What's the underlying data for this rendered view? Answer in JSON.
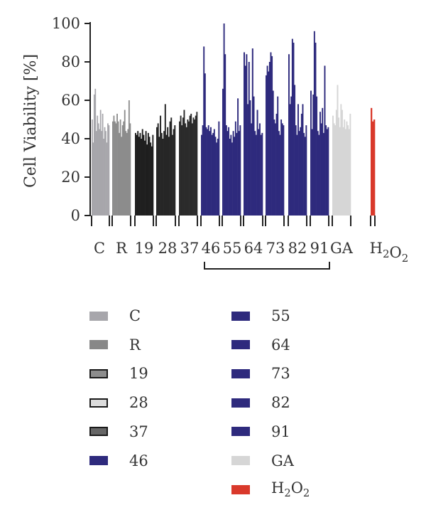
{
  "chart_data": {
    "type": "bar",
    "ylabel": "Cell Viability [%]",
    "ylim": [
      0,
      100
    ],
    "yticks": [
      0,
      20,
      40,
      60,
      80,
      100
    ],
    "grid": false,
    "legend_position": "bottom",
    "groups": [
      {
        "label": "C",
        "color": "#a7a6ab",
        "values": [
          50,
          38,
          63,
          66,
          44,
          52,
          48,
          45,
          55,
          44,
          53,
          40,
          46,
          44,
          38,
          48,
          47
        ]
      },
      {
        "label": "R",
        "color": "#8c8c8c",
        "values": [
          49,
          52,
          49,
          48,
          53,
          49,
          43,
          50,
          41,
          47,
          49,
          55,
          44,
          43,
          45,
          60,
          48
        ]
      },
      {
        "label": "19",
        "color": "#1f1f1f",
        "values": [
          43,
          42,
          44,
          41,
          43,
          40,
          45,
          42,
          39,
          44,
          37,
          43,
          41,
          38,
          36,
          42
        ]
      },
      {
        "label": "28",
        "color": "#262626",
        "values": [
          46,
          48,
          41,
          52,
          43,
          40,
          44,
          58,
          42,
          46,
          41,
          49,
          51,
          42,
          45,
          47
        ]
      },
      {
        "label": "37",
        "color": "#2b2b2b",
        "values": [
          49,
          52,
          47,
          51,
          55,
          48,
          46,
          50,
          49,
          52,
          53,
          48,
          51,
          50,
          52,
          54
        ]
      },
      {
        "label": "46",
        "color": "#2e2a7d",
        "values": [
          42,
          47,
          88,
          74,
          46,
          45,
          47,
          44,
          46,
          42,
          43,
          45,
          41,
          38,
          40,
          49
        ]
      },
      {
        "label": "55",
        "color": "#2e2a7d",
        "values": [
          66,
          100,
          84,
          47,
          44,
          46,
          40,
          42,
          38,
          44,
          41,
          49,
          43,
          61,
          44,
          47
        ]
      },
      {
        "label": "64",
        "color": "#2e2a7d",
        "values": [
          85,
          78,
          84,
          58,
          80,
          60,
          48,
          87,
          62,
          44,
          42,
          55,
          45,
          48,
          42,
          43
        ]
      },
      {
        "label": "73",
        "color": "#2e2a7d",
        "values": [
          73,
          78,
          75,
          80,
          85,
          83,
          65,
          50,
          48,
          53,
          62,
          44,
          42,
          50,
          48,
          47
        ]
      },
      {
        "label": "82",
        "color": "#2e2a7d",
        "values": [
          84,
          58,
          62,
          92,
          90,
          68,
          47,
          42,
          58,
          44,
          46,
          53,
          58,
          43,
          41,
          47
        ]
      },
      {
        "label": "91",
        "color": "#2e2a7d",
        "values": [
          65,
          45,
          63,
          96,
          90,
          62,
          44,
          42,
          54,
          48,
          56,
          43,
          78,
          47,
          45,
          46
        ]
      },
      {
        "label": "GA",
        "color": "#d6d6d6",
        "values": [
          52,
          48,
          47,
          55,
          68,
          51,
          46,
          58,
          55,
          46,
          50,
          45,
          49,
          47,
          45,
          53
        ]
      },
      {
        "label": "H₂O₂",
        "color": "#d9392b",
        "values": [
          56,
          49,
          50
        ]
      }
    ],
    "bracket": {
      "from": "46",
      "to": "91"
    }
  },
  "legend": {
    "col1": [
      {
        "label": "C",
        "fill": "#a7a6ab",
        "stroke": "#a7a6ab"
      },
      {
        "label": "R",
        "fill": "#888888",
        "stroke": "#888888"
      },
      {
        "label": "19",
        "fill": "#8d8d8d",
        "stroke": "#1a1a1a"
      },
      {
        "label": "28",
        "fill": "#dcdcdc",
        "stroke": "#1a1a1a"
      },
      {
        "label": "37",
        "fill": "#666666",
        "stroke": "#1a1a1a"
      },
      {
        "label": "46",
        "fill": "#2e2a7d",
        "stroke": "#2e2a7d"
      }
    ],
    "col2": [
      {
        "label": "55",
        "fill": "#2e2a7d",
        "stroke": "#2e2a7d"
      },
      {
        "label": "64",
        "fill": "#2e2a7d",
        "stroke": "#2e2a7d"
      },
      {
        "label": "73",
        "fill": "#2e2a7d",
        "stroke": "#2e2a7d"
      },
      {
        "label": "82",
        "fill": "#2e2a7d",
        "stroke": "#2e2a7d"
      },
      {
        "label": "91",
        "fill": "#2e2a7d",
        "stroke": "#2e2a7d"
      },
      {
        "label": "GA",
        "fill": "#d6d6d6",
        "stroke": "#d6d6d6"
      },
      {
        "label": "H₂O₂",
        "fill": "#d9392b",
        "stroke": "#d9392b"
      }
    ]
  }
}
